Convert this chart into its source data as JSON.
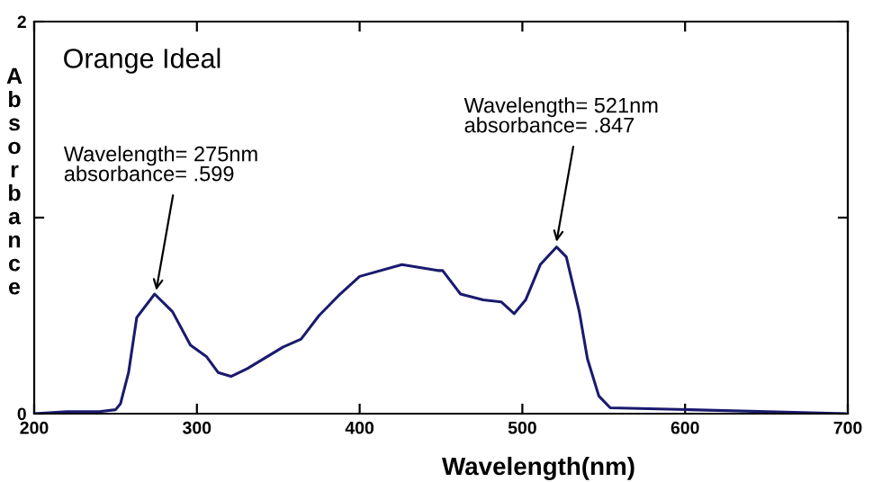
{
  "chart_data": {
    "type": "line",
    "title": "Orange Ideal",
    "xlabel": "Wavelength(nm)",
    "ylabel": "Absorbance",
    "x": [
      200,
      220,
      240,
      250,
      253,
      258,
      263,
      274,
      285,
      296,
      306,
      313,
      321,
      331,
      353,
      364,
      375,
      388,
      400,
      426,
      448,
      451,
      462,
      476,
      487,
      495,
      502,
      511,
      521,
      527,
      535,
      540,
      547,
      554,
      603,
      698
    ],
    "series": [
      {
        "color": "#1a1a6e",
        "values": [
          0.0,
          0.01,
          0.01,
          0.02,
          0.05,
          0.21,
          0.49,
          0.61,
          0.52,
          0.35,
          0.29,
          0.21,
          0.19,
          0.23,
          0.34,
          0.38,
          0.5,
          0.61,
          0.7,
          0.76,
          0.73,
          0.73,
          0.61,
          0.58,
          0.57,
          0.51,
          0.58,
          0.76,
          0.85,
          0.8,
          0.52,
          0.28,
          0.09,
          0.03,
          0.02,
          0.0
        ]
      }
    ],
    "xlim": [
      200,
      700
    ],
    "xticks": [
      200,
      300,
      400,
      500,
      600,
      700
    ],
    "ylim": [
      0,
      2
    ],
    "yticks": [
      0,
      {
        "value": 1,
        "label": null
      },
      2
    ],
    "annotations": [
      {
        "text": "Wavelength= 275nm\nabsorbance= .599",
        "x": 275,
        "y": 0.599
      },
      {
        "text": "Wavelength= 521nm\nabsorbance= .847",
        "x": 521,
        "y": 0.847
      }
    ],
    "grid": false,
    "legend": false,
    "marker": "none",
    "line_style": "solid"
  }
}
